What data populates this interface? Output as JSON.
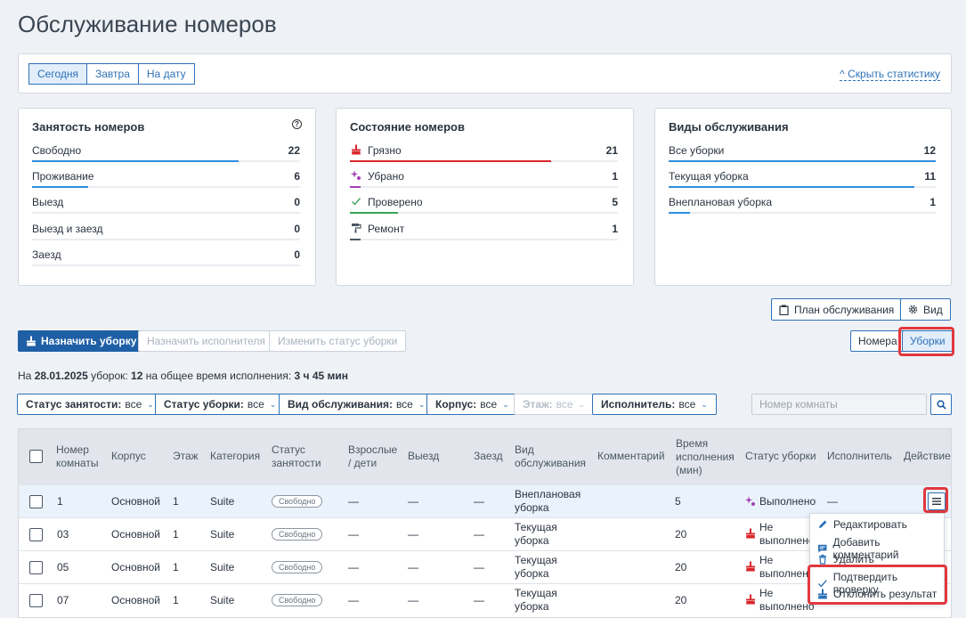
{
  "page_title": "Обслуживание номеров",
  "date_tabs": [
    "Сегодня",
    "Завтра",
    "На дату"
  ],
  "hide_stats_label": "^ Скрыть статистику",
  "occupancy": {
    "title": "Занятость номеров",
    "rows": [
      {
        "label": "Свободно",
        "value": "22",
        "fraction": 0.77
      },
      {
        "label": "Проживание",
        "value": "6",
        "fraction": 0.21
      },
      {
        "label": "Выезд",
        "value": "0",
        "fraction": 0
      },
      {
        "label": "Выезд и заезд",
        "value": "0",
        "fraction": 0
      },
      {
        "label": "Заезд",
        "value": "0",
        "fraction": 0
      }
    ]
  },
  "room_state": {
    "title": "Состояние номеров",
    "rows": [
      {
        "label": "Грязно",
        "value": "21",
        "fraction": 0.75,
        "color": "#d9262b",
        "icon": "broom-icon"
      },
      {
        "label": "Убрано",
        "value": "1",
        "fraction": 0.04,
        "color": "#a23fb5",
        "icon": "sparkle-icon"
      },
      {
        "label": "Проверено",
        "value": "5",
        "fraction": 0.18,
        "color": "#3aa35a",
        "icon": "check-icon"
      },
      {
        "label": "Ремонт",
        "value": "1",
        "fraction": 0.04,
        "color": "#4b5663",
        "icon": "paint-roller-icon"
      }
    ]
  },
  "service_types": {
    "title": "Виды обслуживания",
    "rows": [
      {
        "label": "Все уборки",
        "value": "12",
        "fraction": 1
      },
      {
        "label": "Текущая уборка",
        "value": "11",
        "fraction": 0.92
      },
      {
        "label": "Внеплановая уборка",
        "value": "1",
        "fraction": 0.08
      }
    ]
  },
  "toolbar": {
    "plan_label": "План обслуживания",
    "view_label": "Вид",
    "assign_cleaning": "Назначить уборку",
    "assign_executor": "Назначить исполнителя",
    "change_status": "Изменить статус уборки",
    "rooms_tab": "Номера",
    "cleanings_tab": "Уборки"
  },
  "summary": {
    "p1": "На ",
    "date": "28.01.2025",
    "p2": " уборок: ",
    "count": "12",
    "p3": " на общее время исполнения: ",
    "time": "3 ч 45 мин"
  },
  "filters": [
    {
      "key": "Статус занятости:",
      "value": "все",
      "enabled": true
    },
    {
      "key": "Статус уборки:",
      "value": "все",
      "enabled": true
    },
    {
      "key": "Вид обслуживания:",
      "value": "все",
      "enabled": true
    },
    {
      "key": "Корпус:",
      "value": "все",
      "enabled": true
    },
    {
      "key": "Этаж:",
      "value": "все",
      "enabled": false
    },
    {
      "key": "Исполнитель:",
      "value": "все",
      "enabled": true
    }
  ],
  "room_search_placeholder": "Номер комнаты",
  "columns": [
    "Номер комнаты",
    "Корпус",
    "Этаж",
    "Категория",
    "Статус занятости",
    "Взрослые / дети",
    "Выезд",
    "Заезд",
    "Вид обслуживания",
    "Комментарий",
    "Время исполнения (мин)",
    "Статус уборки",
    "Исполнитель",
    "Действие"
  ],
  "rows": [
    {
      "room": "1",
      "building": "Основной",
      "floor": "1",
      "category": "Suite",
      "occupancy": "Свободно",
      "adults": "—",
      "checkout": "—",
      "checkin": "—",
      "service": "Внеплановая уборка",
      "time": "5",
      "status": "Выполнено",
      "status_icon": "sparkle-icon",
      "executor": "—"
    },
    {
      "room": "03",
      "building": "Основной",
      "floor": "1",
      "category": "Suite",
      "occupancy": "Свободно",
      "adults": "—",
      "checkout": "—",
      "checkin": "—",
      "service": "Текущая уборка",
      "time": "20",
      "status": "Не выполнено",
      "status_icon": "broom-icon",
      "executor": ""
    },
    {
      "room": "05",
      "building": "Основной",
      "floor": "1",
      "category": "Suite",
      "occupancy": "Свободно",
      "adults": "—",
      "checkout": "—",
      "checkin": "—",
      "service": "Текущая уборка",
      "time": "20",
      "status": "Не выполнено",
      "status_icon": "broom-icon",
      "executor": ""
    },
    {
      "room": "07",
      "building": "Основной",
      "floor": "1",
      "category": "Suite",
      "occupancy": "Свободно",
      "adults": "—",
      "checkout": "—",
      "checkin": "—",
      "service": "Текущая уборка",
      "time": "20",
      "status": "Не выполнено",
      "status_icon": "broom-icon",
      "executor": ""
    }
  ],
  "action_menu": [
    "Редактировать",
    "Добавить комментарий",
    "Удалить",
    "Подтвердить проверку",
    "Отклонить результат"
  ]
}
